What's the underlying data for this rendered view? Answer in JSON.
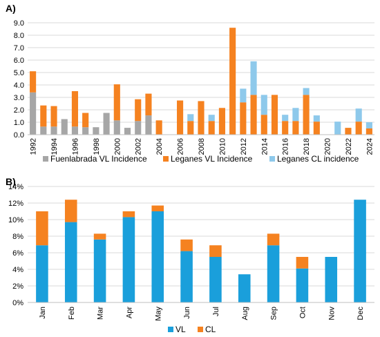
{
  "colors": {
    "fuenlabrada_vl": "#a6a6a6",
    "leganes_vl": "#f58220",
    "leganes_cl": "#8ec9eb",
    "vl_b": "#1a9fdb",
    "cl_b": "#f58220",
    "grid": "#d9d9d9"
  },
  "chart_data": [
    {
      "panel_label": "A)",
      "type": "bar",
      "stacked": true,
      "x": [
        1992,
        1993,
        1994,
        1995,
        1996,
        1997,
        1998,
        1999,
        2000,
        2001,
        2002,
        2003,
        2004,
        2005,
        2006,
        2007,
        2008,
        2009,
        2010,
        2011,
        2012,
        2013,
        2014,
        2015,
        2016,
        2017,
        2018,
        2019,
        2020,
        2021,
        2022,
        2023,
        2024
      ],
      "tick_labels": [
        "1992",
        "1994",
        "1996",
        "1998",
        "2000",
        "2002",
        "2004",
        "2006",
        "2008",
        "2010",
        "2012",
        "2014",
        "2016",
        "2018",
        "2020",
        "2022",
        "2024"
      ],
      "y_ticks": [
        "0.0",
        "1.0",
        "2.0",
        "3.0",
        "4.0",
        "5.0",
        "6.0",
        "7.0",
        "8.0",
        "9.0"
      ],
      "ylim": [
        0,
        9
      ],
      "grid": true,
      "legend_position": "bottom",
      "series": [
        {
          "name": "Fuenlabrada VL Incidence",
          "color_key": "fuenlabrada_vl",
          "values": [
            3.4,
            0.65,
            0.65,
            1.25,
            0.65,
            0.6,
            0.6,
            1.75,
            1.15,
            0.55,
            1.1,
            1.55,
            0,
            0,
            0,
            0,
            0,
            0,
            0,
            0,
            0,
            0,
            0,
            0,
            0,
            0,
            0,
            0,
            0,
            0,
            0,
            0,
            0
          ]
        },
        {
          "name": "Leganes VL Incidence",
          "color_key": "leganes_vl",
          "values": [
            1.7,
            1.7,
            1.65,
            0,
            2.85,
            1.15,
            0,
            0,
            2.9,
            0,
            1.75,
            1.75,
            1.15,
            0,
            2.75,
            1.1,
            2.7,
            1.1,
            2.15,
            8.6,
            2.6,
            3.2,
            1.6,
            3.2,
            1.1,
            1.1,
            3.2,
            1.05,
            0,
            0,
            0.55,
            1.05,
            0.5
          ]
        },
        {
          "name": "Leganes CL incidence",
          "color_key": "leganes_cl",
          "values": [
            0,
            0,
            0,
            0,
            0,
            0,
            0,
            0,
            0,
            0,
            0,
            0,
            0,
            0,
            0,
            0.55,
            0,
            0.5,
            0,
            0,
            1.1,
            2.7,
            1.6,
            0,
            0.5,
            1.05,
            0.55,
            0.5,
            0,
            1.05,
            0,
            1.05,
            0.5
          ]
        }
      ]
    },
    {
      "panel_label": "B)",
      "type": "bar",
      "stacked": true,
      "categories": [
        "Jan",
        "Feb",
        "Mar",
        "Apr",
        "May",
        "Jun",
        "Jul",
        "Aug",
        "Sep",
        "Oct",
        "Nov",
        "Dec"
      ],
      "y_ticks": [
        "0%",
        "2%",
        "4%",
        "6%",
        "8%",
        "10%",
        "12%",
        "14%"
      ],
      "ylim": [
        0,
        14
      ],
      "grid": true,
      "legend_position": "bottom",
      "series": [
        {
          "name": "VL",
          "color_key": "vl_b",
          "values": [
            6.9,
            9.7,
            7.6,
            10.3,
            11.0,
            6.2,
            5.5,
            3.4,
            6.9,
            4.1,
            5.5,
            12.4
          ]
        },
        {
          "name": "CL",
          "color_key": "cl_b",
          "values": [
            4.1,
            2.7,
            0.7,
            0.7,
            0.7,
            1.4,
            1.4,
            0,
            1.4,
            1.4,
            0,
            0
          ]
        }
      ]
    }
  ]
}
